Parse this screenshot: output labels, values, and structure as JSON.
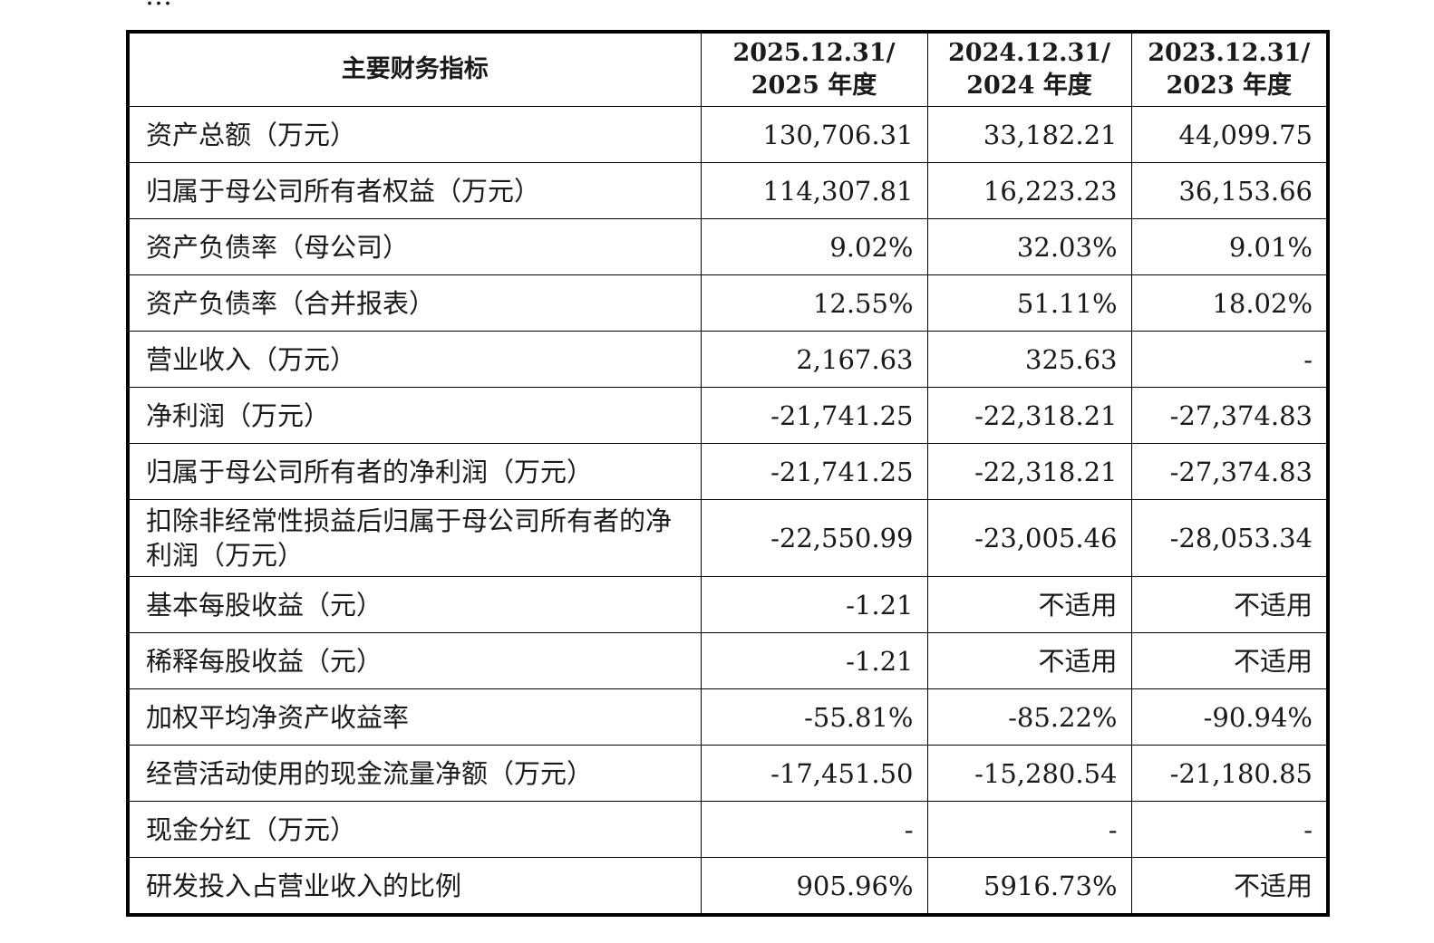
{
  "cutoff_text": "…",
  "table": {
    "header": {
      "indicator": "主要财务指标",
      "periods": [
        [
          "2025.12.31/",
          "2025 年度"
        ],
        [
          "2024.12.31/",
          "2024 年度"
        ],
        [
          "2023.12.31/",
          "2023 年度"
        ]
      ]
    },
    "rows": [
      {
        "label": "资产总额（万元）",
        "values": [
          "130,706.31",
          "33,182.21",
          "44,099.75"
        ]
      },
      {
        "label": "归属于母公司所有者权益（万元）",
        "values": [
          "114,307.81",
          "16,223.23",
          "36,153.66"
        ]
      },
      {
        "label": "资产负债率（母公司）",
        "values": [
          "9.02%",
          "32.03%",
          "9.01%"
        ]
      },
      {
        "label": "资产负债率（合并报表）",
        "values": [
          "12.55%",
          "51.11%",
          "18.02%"
        ]
      },
      {
        "label": "营业收入（万元）",
        "values": [
          "2,167.63",
          "325.63",
          "-"
        ]
      },
      {
        "label": "净利润（万元）",
        "values": [
          "-21,741.25",
          "-22,318.21",
          "-27,374.83"
        ]
      },
      {
        "label": "归属于母公司所有者的净利润（万元）",
        "values": [
          "-21,741.25",
          "-22,318.21",
          "-27,374.83"
        ]
      },
      {
        "label": "扣除非经常性损益后归属于母公司所有者的净利润（万元）",
        "values": [
          "-22,550.99",
          "-23,005.46",
          "-28,053.34"
        ],
        "tall": true
      },
      {
        "label": "基本每股收益（元）",
        "values": [
          "-1.21",
          "不适用",
          "不适用"
        ]
      },
      {
        "label": "稀释每股收益（元）",
        "values": [
          "-1.21",
          "不适用",
          "不适用"
        ]
      },
      {
        "label": "加权平均净资产收益率",
        "values": [
          "-55.81%",
          "-85.22%",
          "-90.94%"
        ]
      },
      {
        "label": "经营活动使用的现金流量净额（万元）",
        "values": [
          "-17,451.50",
          "-15,280.54",
          "-21,180.85"
        ]
      },
      {
        "label": "现金分红（万元）",
        "values": [
          "-",
          "-",
          "-"
        ]
      },
      {
        "label": "研发投入占营业收入的比例",
        "values": [
          "905.96%",
          "5916.73%",
          "不适用"
        ]
      }
    ]
  }
}
